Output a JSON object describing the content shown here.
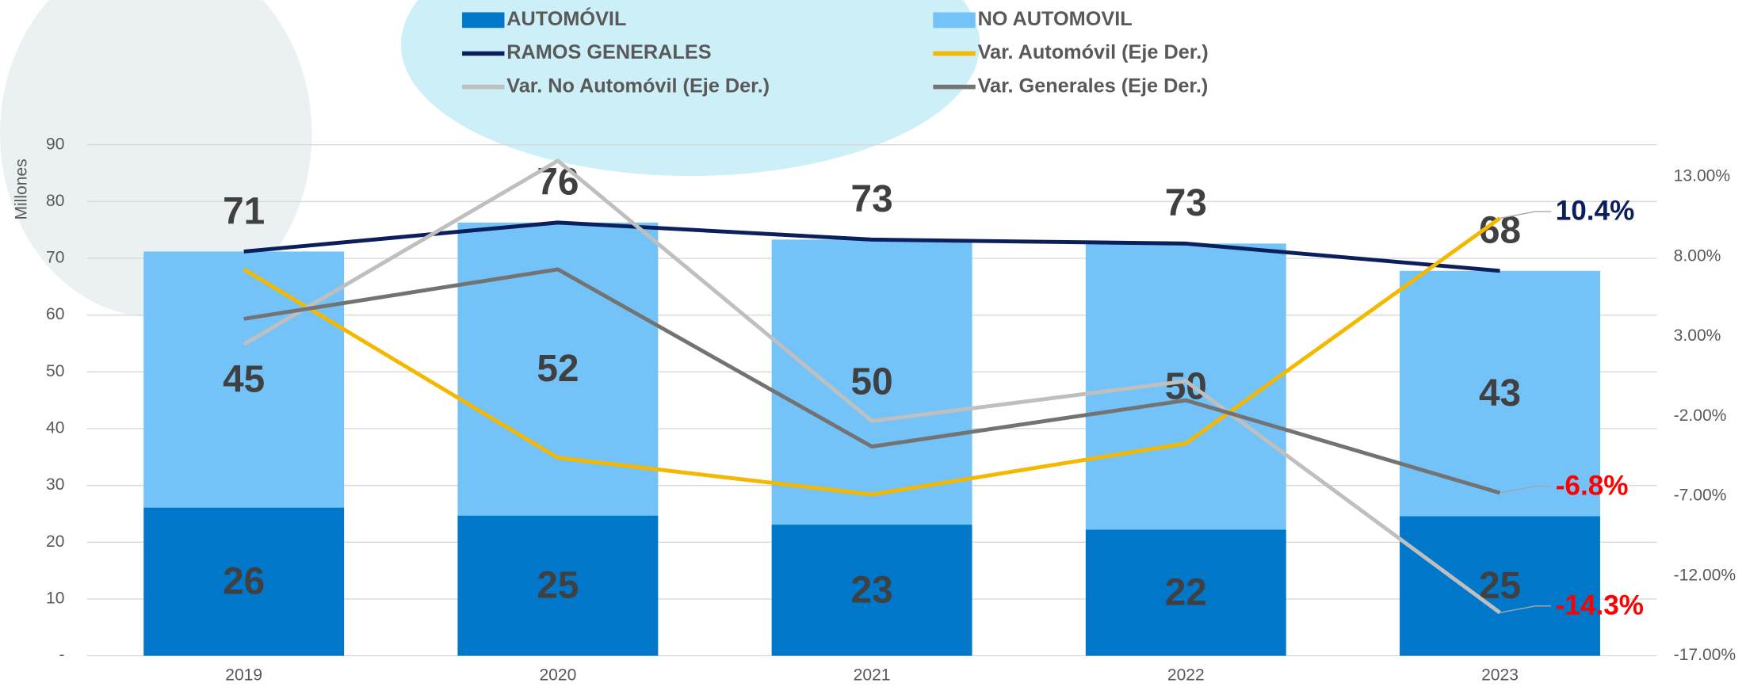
{
  "chart_data": {
    "type": "combo",
    "y_label": "Millones",
    "categories": [
      "2019",
      "2020",
      "2021",
      "2022",
      "2023"
    ],
    "ylim": [
      0,
      90
    ],
    "yticks": [
      {
        "value": 0,
        "label": "-"
      },
      10,
      20,
      30,
      40,
      50,
      60,
      70,
      80,
      90
    ],
    "y2lim": [
      -17,
      15
    ],
    "y2ticks": [
      {
        "value": -17,
        "label": "-17.00%"
      },
      {
        "value": -12,
        "label": "-12.00%"
      },
      {
        "value": -7,
        "label": "-7.00%"
      },
      {
        "value": -2,
        "label": "-2.00%"
      },
      {
        "value": 3,
        "label": "3.00%"
      },
      {
        "value": 8,
        "label": "8.00%"
      },
      {
        "value": 13,
        "label": "13.00%"
      }
    ],
    "grid": true,
    "series": [
      {
        "name": "AUTOMÓVIL",
        "type": "bar",
        "color": "#0077c8",
        "values": [
          26.1,
          24.7,
          23.1,
          22.2,
          24.6
        ],
        "value_labels": [
          "26",
          "25",
          "23",
          "22",
          "25"
        ]
      },
      {
        "name": "NO AUTOMOVIL",
        "type": "bar",
        "color": "#73c3f8",
        "values": [
          45.1,
          51.6,
          50.2,
          50.4,
          43.2
        ],
        "value_labels": [
          "45",
          "52",
          "50",
          "50",
          "43"
        ]
      },
      {
        "name": "RAMOS GENERALES",
        "type": "line",
        "color": "#0b1f5c",
        "values": [
          71.2,
          76.3,
          73.3,
          72.6,
          67.8
        ],
        "value_labels": [
          "71",
          "76",
          "73",
          "73",
          "68"
        ]
      },
      {
        "name": "Var. Automóvil (Eje Der.)",
        "type": "line",
        "axis": "y2",
        "color": "#f5b800",
        "values": [
          7.2,
          -4.6,
          -6.9,
          -3.7,
          10.4
        ],
        "value_labels": [
          null,
          null,
          null,
          null,
          "10.4%"
        ],
        "label_color": "#0b1f5c"
      },
      {
        "name": "Var. No Automóvil (Eje Der.)",
        "type": "line",
        "axis": "y2",
        "color": "#bfbfbf",
        "values": [
          2.5,
          14.0,
          -2.3,
          0.2,
          -14.3
        ],
        "value_labels": [
          null,
          null,
          null,
          null,
          "-14.3%"
        ],
        "label_color": "#ff0000"
      },
      {
        "name": "Var. Generales (Eje Der.)",
        "type": "line",
        "axis": "y2",
        "color": "#737373",
        "values": [
          4.1,
          7.2,
          -3.9,
          -1.0,
          -6.8
        ],
        "value_labels": [
          null,
          null,
          null,
          null,
          "-6.8%"
        ],
        "label_color": "#ff0000"
      }
    ]
  }
}
